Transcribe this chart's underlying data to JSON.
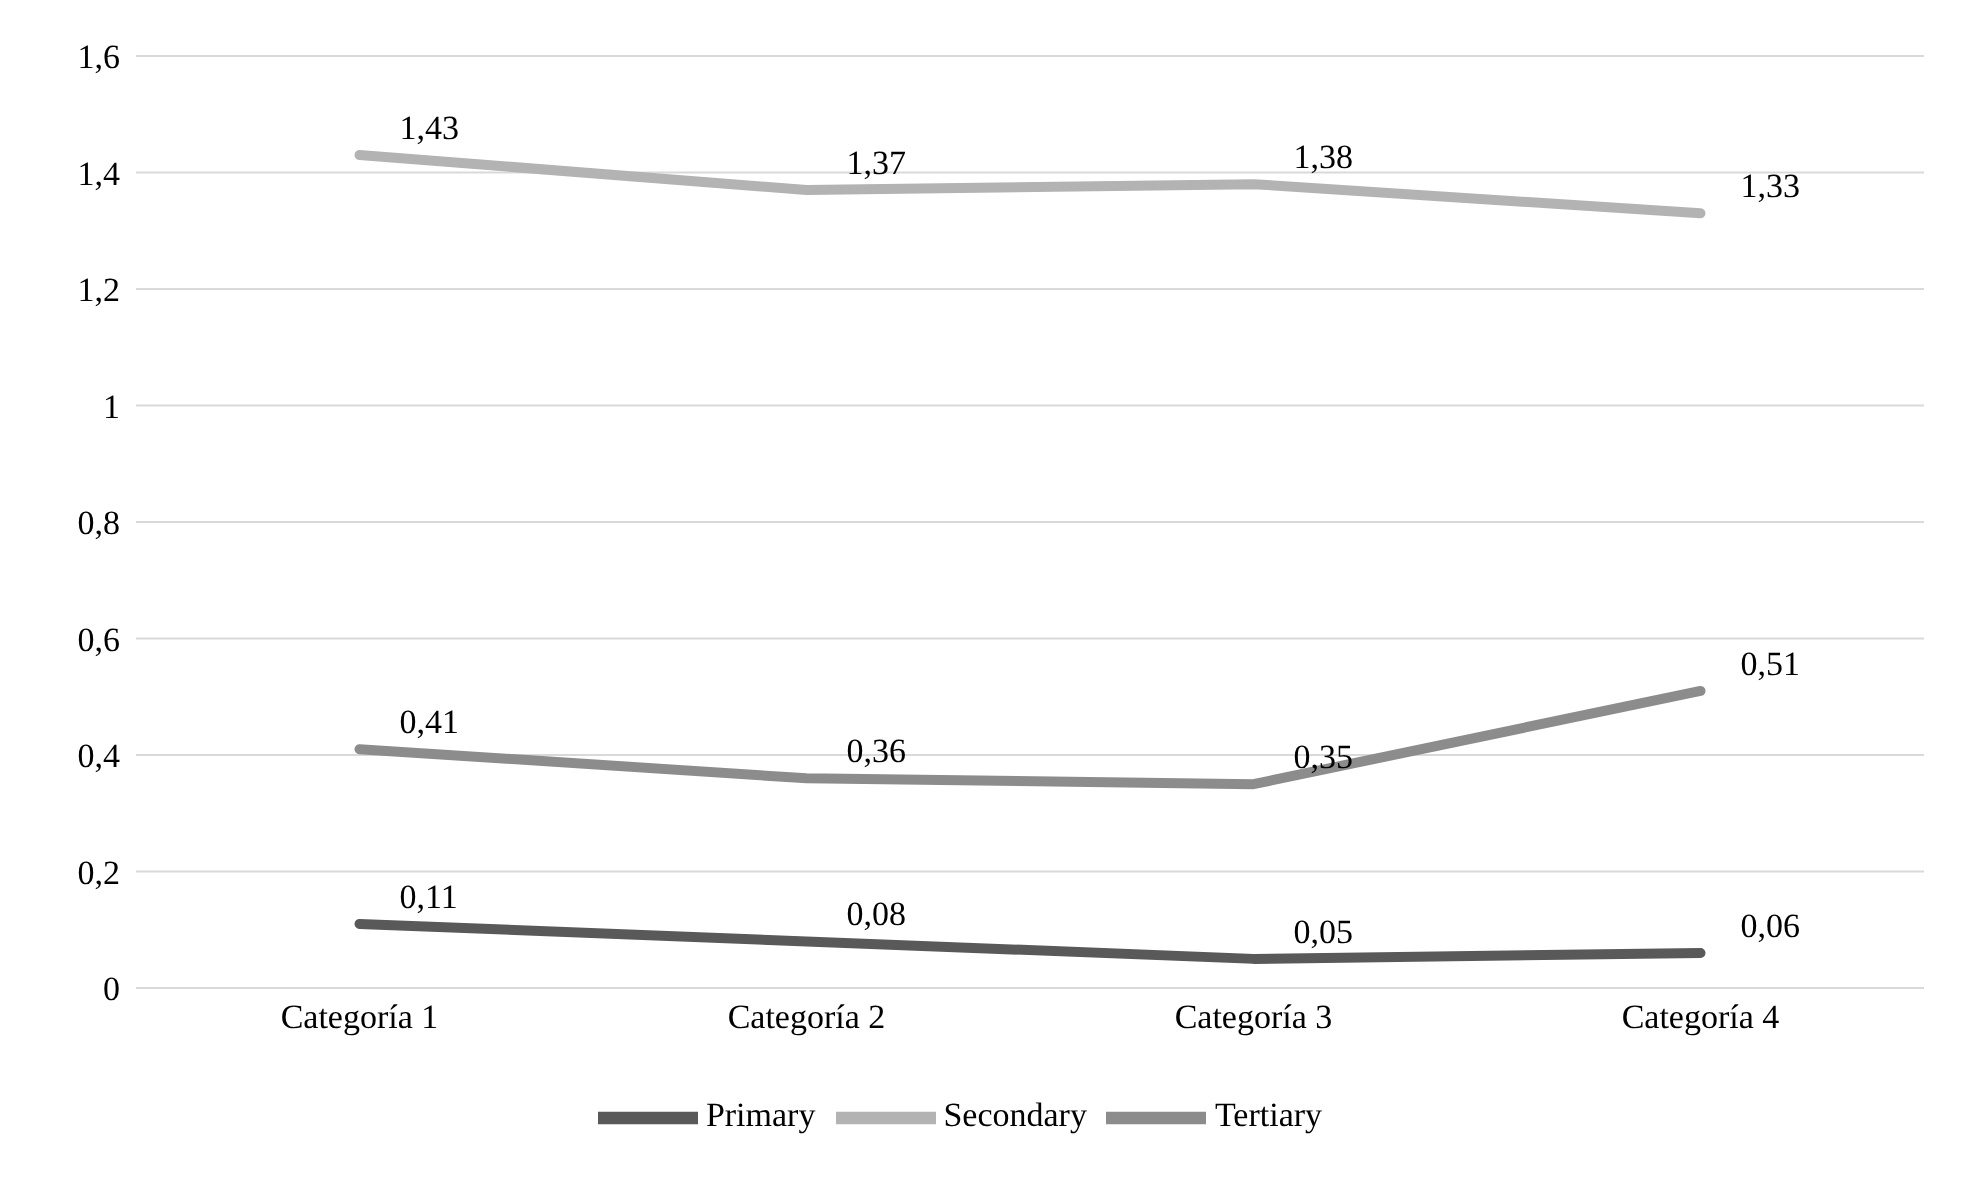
{
  "chart_data": {
    "type": "line",
    "categories": [
      "Categoría 1",
      "Categoría 2",
      "Categoría 3",
      "Categoría 4"
    ],
    "series": [
      {
        "name": "Primary",
        "color": "#595959",
        "values": [
          0.11,
          0.08,
          0.05,
          0.06
        ],
        "value_labels": [
          "0,11",
          "0,08",
          "0,05",
          "0,06"
        ]
      },
      {
        "name": "Secondary",
        "color": "#b3b3b3",
        "values": [
          1.43,
          1.37,
          1.38,
          1.33
        ],
        "value_labels": [
          "1,43",
          "1,37",
          "1,38",
          "1,33"
        ]
      },
      {
        "name": "Tertiary",
        "color": "#8c8c8c",
        "values": [
          0.41,
          0.36,
          0.35,
          0.51
        ],
        "value_labels": [
          "0,41",
          "0,36",
          "0,35",
          "0,51"
        ]
      }
    ],
    "ylim": [
      0,
      1.6
    ],
    "yticks": [
      0,
      {
        "value": 0.2,
        "label": "0,2"
      },
      {
        "value": 0.4,
        "label": "0,4"
      },
      {
        "value": 0.6,
        "label": "0,6"
      },
      {
        "value": 0.8,
        "label": "0,8"
      },
      1,
      {
        "value": 1.2,
        "label": "1,2"
      },
      {
        "value": 1.4,
        "label": "1,4"
      },
      {
        "value": 1.6,
        "label": "1,6"
      }
    ],
    "grid": "y",
    "legend": "bottom",
    "marker": "none",
    "line_style": "solid"
  }
}
